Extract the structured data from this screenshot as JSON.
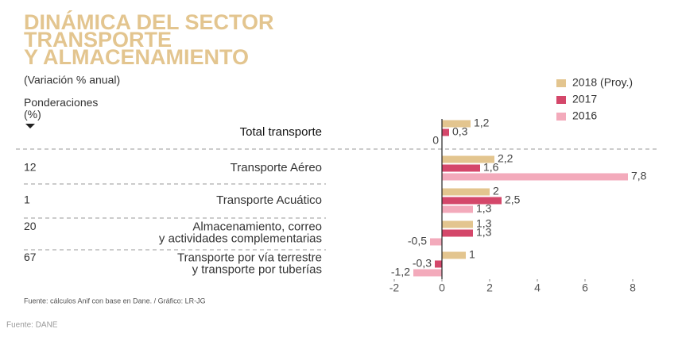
{
  "chart_data": {
    "type": "bar",
    "orientation": "horizontal",
    "title": "DINÁMICA DEL SECTOR\nTRANSPORTE\nY ALMACENAMIENTO",
    "subtitle": "(Variación % anual)",
    "weights_label": "Ponderaciones\n(%)",
    "categories": [
      "Total transporte",
      "Transporte Aéreo",
      "Transporte Acuático",
      "Almacenamiento, correo\ny actividades complementarias",
      "Transporte por vía terrestre\ny transporte por tuberías"
    ],
    "weights": [
      null,
      12,
      1,
      20,
      67
    ],
    "series": [
      {
        "name": "2018 (Proy.)",
        "color": "#e3c58f",
        "values": [
          1.2,
          2.2,
          2,
          1.3,
          1
        ],
        "value_labels": [
          "1,2",
          "2,2",
          "2",
          "1,3",
          "1"
        ]
      },
      {
        "name": "2017",
        "color": "#d4476a",
        "values": [
          0.3,
          1.6,
          2.5,
          1.3,
          -0.3
        ],
        "value_labels": [
          "0,3",
          "1,6",
          "2,5",
          "1,3",
          "-0,3"
        ]
      },
      {
        "name": "2016",
        "color": "#f3aabb",
        "values": [
          0,
          7.8,
          1.3,
          -0.5,
          -1.2
        ],
        "value_labels": [
          "0",
          "7,8",
          "1,3",
          "-0,5",
          "-1,2"
        ]
      }
    ],
    "xlim": [
      -2,
      8
    ],
    "xticks": [
      -2,
      0,
      2,
      4,
      6,
      8
    ],
    "grid": false,
    "legend": "upper right",
    "footnote": "Fuente: cálculos Anif con base en Dane. / Gráfico: LR-JG",
    "source": "Fuente: DANE"
  }
}
